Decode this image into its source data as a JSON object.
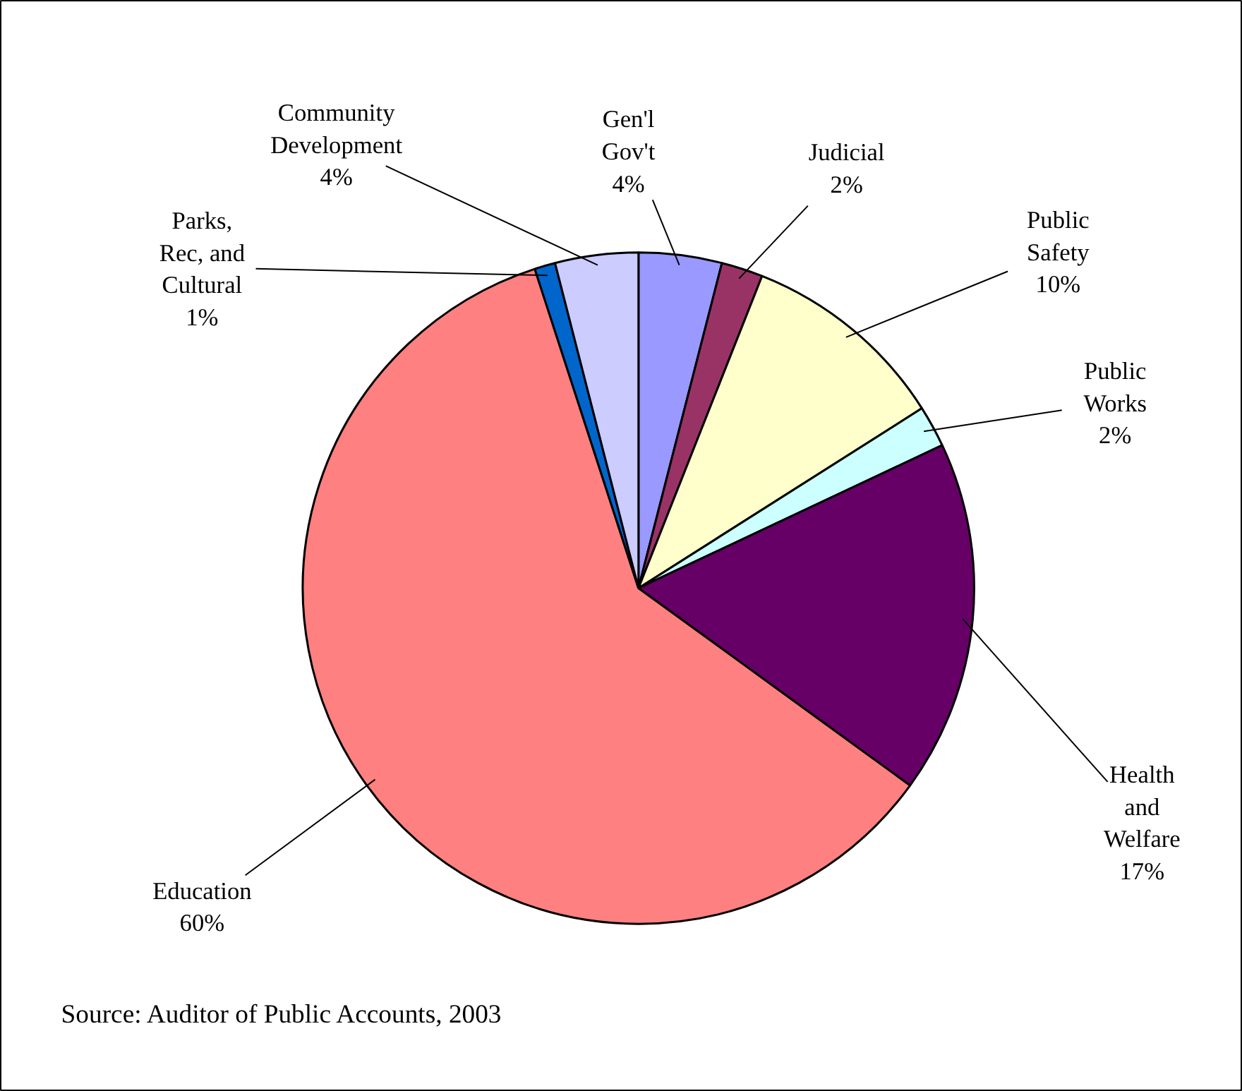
{
  "chart_data": {
    "type": "pie",
    "categories": [
      "Gen'l Gov't",
      "Judicial",
      "Public Safety",
      "Public Works",
      "Health and Welfare",
      "Education",
      "Parks, Rec, and Cultural",
      "Community Development"
    ],
    "values": [
      4,
      2,
      10,
      2,
      17,
      60,
      1,
      4
    ],
    "value_labels": [
      "4%",
      "2%",
      "10%",
      "2%",
      "17%",
      "60%",
      "1%",
      "4%"
    ],
    "colors": [
      "#9999ff",
      "#993366",
      "#ffffcc",
      "#ccffff",
      "#660066",
      "#ff8080",
      "#0066cc",
      "#ccccff"
    ],
    "annotations": [
      "Source: Auditor of Public Accounts, 2003"
    ]
  }
}
